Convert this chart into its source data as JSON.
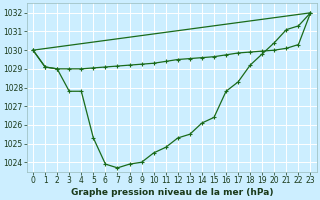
{
  "background_color": "#cceeff",
  "grid_color": "#aaddcc",
  "line_color": "#1a6b1a",
  "title": "Graphe pression niveau de la mer (hPa)",
  "xlim": [
    -0.5,
    23.5
  ],
  "ylim": [
    1023.5,
    1032.5
  ],
  "yticks": [
    1024,
    1025,
    1026,
    1027,
    1028,
    1029,
    1030,
    1031,
    1032
  ],
  "xticks": [
    0,
    1,
    2,
    3,
    4,
    5,
    6,
    7,
    8,
    9,
    10,
    11,
    12,
    13,
    14,
    15,
    16,
    17,
    18,
    19,
    20,
    21,
    22,
    23
  ],
  "series_main": {
    "x": [
      0,
      1,
      2,
      3,
      4,
      5,
      6,
      7,
      8,
      9,
      10,
      11,
      12,
      13,
      14,
      15,
      16,
      17,
      18,
      19,
      20,
      21,
      22,
      23
    ],
    "y": [
      1030.0,
      1029.1,
      1029.0,
      1027.8,
      1027.8,
      1025.3,
      1023.9,
      1023.7,
      1023.9,
      1024.0,
      1024.5,
      1024.8,
      1025.3,
      1025.5,
      1026.1,
      1026.4,
      1027.8,
      1028.3,
      1029.2,
      1029.8,
      1030.4,
      1031.1,
      1031.3,
      1032.0
    ]
  },
  "series_flat": {
    "x": [
      0,
      1,
      2,
      3,
      4,
      5,
      6,
      7,
      8,
      9,
      10,
      11,
      12,
      13,
      14,
      15,
      16,
      17,
      18,
      19,
      20,
      21,
      22,
      23
    ],
    "y": [
      1030.0,
      1029.1,
      1029.0,
      1029.0,
      1029.0,
      1029.05,
      1029.1,
      1029.15,
      1029.2,
      1029.25,
      1029.3,
      1029.4,
      1029.5,
      1029.55,
      1029.6,
      1029.65,
      1029.75,
      1029.85,
      1029.9,
      1029.95,
      1030.0,
      1030.1,
      1030.3,
      1032.0
    ]
  },
  "series_straight": {
    "x": [
      0,
      23
    ],
    "y": [
      1030.0,
      1032.0
    ]
  }
}
